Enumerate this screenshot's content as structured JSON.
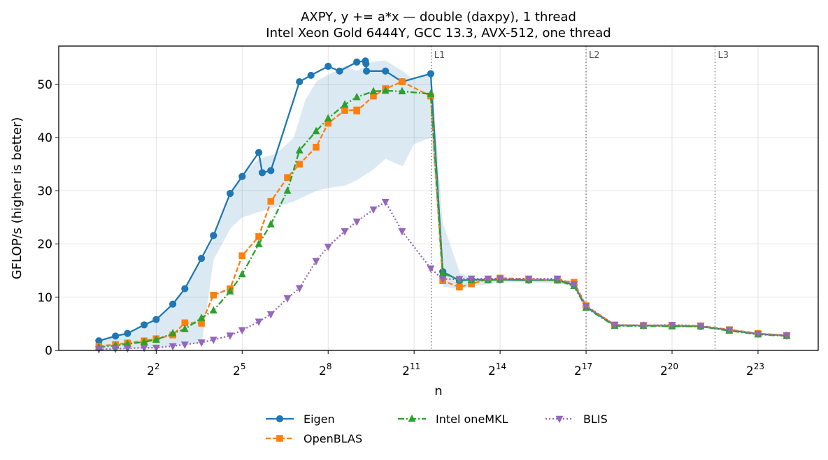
{
  "chart_data": {
    "type": "line",
    "title_lines": [
      "AXPY, y += a*x — double (daxpy), 1 thread",
      "Intel Xeon Gold 6444Y, GCC 13.3, AVX-512, one thread"
    ],
    "xlabel": "n",
    "ylabel": "GFLOP/s (higher is better)",
    "x_scale": "log2",
    "xlim_log2": [
      -1.4,
      25.1
    ],
    "ylim": [
      0,
      57.2
    ],
    "x_ticks": [
      {
        "base": "2",
        "exp": "2",
        "log2": 2
      },
      {
        "base": "2",
        "exp": "5",
        "log2": 5
      },
      {
        "base": "2",
        "exp": "8",
        "log2": 8
      },
      {
        "base": "2",
        "exp": "11",
        "log2": 11
      },
      {
        "base": "2",
        "exp": "14",
        "log2": 14
      },
      {
        "base": "2",
        "exp": "17",
        "log2": 17
      },
      {
        "base": "2",
        "exp": "20",
        "log2": 20
      },
      {
        "base": "2",
        "exp": "23",
        "log2": 23
      }
    ],
    "y_ticks": [
      0,
      10,
      20,
      30,
      40,
      50
    ],
    "grid": true,
    "cache_lines": [
      {
        "label": "L1",
        "log2": 11.6
      },
      {
        "label": "L2",
        "log2": 17.0
      },
      {
        "label": "L3",
        "log2": 21.5
      }
    ],
    "band": {
      "color": "#1f77b4",
      "upper": [
        [
          0.0,
          1.9
        ],
        [
          0.6,
          2.7
        ],
        [
          1.0,
          3.0
        ],
        [
          1.58,
          4.7
        ],
        [
          2.0,
          5.6
        ],
        [
          2.6,
          8.6
        ],
        [
          3.0,
          11.3
        ],
        [
          3.6,
          17.0
        ],
        [
          4.0,
          21.0
        ],
        [
          4.6,
          29.2
        ],
        [
          5.0,
          33.0
        ],
        [
          5.58,
          36.0
        ],
        [
          6.2,
          37.0
        ],
        [
          6.8,
          40.0
        ],
        [
          7.2,
          47.0
        ],
        [
          7.6,
          50.6
        ],
        [
          8.0,
          51.8
        ],
        [
          8.6,
          53.5
        ],
        [
          9.0,
          52.5
        ],
        [
          9.58,
          54.3
        ],
        [
          10.0,
          54.5
        ],
        [
          10.6,
          52.5
        ],
        [
          11.0,
          50.8
        ],
        [
          11.6,
          52.0
        ],
        [
          12.0,
          24.0
        ],
        [
          12.6,
          14.5
        ],
        [
          13.0,
          13.5
        ],
        [
          14.0,
          13.5
        ],
        [
          15.0,
          13.5
        ],
        [
          16.0,
          13.5
        ],
        [
          16.6,
          12.7
        ],
        [
          17.0,
          8.5
        ],
        [
          18.0,
          4.8
        ],
        [
          19.0,
          4.7
        ],
        [
          20.0,
          4.7
        ],
        [
          21.0,
          4.6
        ],
        [
          22.0,
          3.9
        ],
        [
          23.0,
          3.1
        ],
        [
          24.0,
          2.8
        ]
      ],
      "lower": [
        [
          0.0,
          0.1
        ],
        [
          0.6,
          0.2
        ],
        [
          1.0,
          0.3
        ],
        [
          1.58,
          0.4
        ],
        [
          2.0,
          0.5
        ],
        [
          2.6,
          0.8
        ],
        [
          3.0,
          1.0
        ],
        [
          3.6,
          1.5
        ],
        [
          4.0,
          17.0
        ],
        [
          4.6,
          23.0
        ],
        [
          5.0,
          25.0
        ],
        [
          5.58,
          26.0
        ],
        [
          6.2,
          27.0
        ],
        [
          6.8,
          28.0
        ],
        [
          7.2,
          29.0
        ],
        [
          7.6,
          30.0
        ],
        [
          8.0,
          30.5
        ],
        [
          8.6,
          31.0
        ],
        [
          9.0,
          32.0
        ],
        [
          9.58,
          34.0
        ],
        [
          10.0,
          36.0
        ],
        [
          10.6,
          34.6
        ],
        [
          11.0,
          38.8
        ],
        [
          11.6,
          40.0
        ],
        [
          12.0,
          12.0
        ],
        [
          12.6,
          11.5
        ],
        [
          13.0,
          12.0
        ],
        [
          14.0,
          12.8
        ],
        [
          15.0,
          12.8
        ],
        [
          16.0,
          12.6
        ],
        [
          16.6,
          12.0
        ],
        [
          17.0,
          7.9
        ],
        [
          18.0,
          4.6
        ],
        [
          19.0,
          4.6
        ],
        [
          20.0,
          4.5
        ],
        [
          21.0,
          4.4
        ],
        [
          22.0,
          3.7
        ],
        [
          23.0,
          2.9
        ],
        [
          24.0,
          2.6
        ]
      ]
    },
    "series": [
      {
        "name": "Eigen",
        "color": "#1f77b4",
        "dash": "solid",
        "marker": "circle",
        "points": [
          [
            0.0,
            1.8
          ],
          [
            0.58,
            2.7
          ],
          [
            1.0,
            3.2
          ],
          [
            1.58,
            4.8
          ],
          [
            2.0,
            5.8
          ],
          [
            2.58,
            8.7
          ],
          [
            3.0,
            11.6
          ],
          [
            3.58,
            17.3
          ],
          [
            4.0,
            21.6
          ],
          [
            4.58,
            29.5
          ],
          [
            5.0,
            32.7
          ],
          [
            5.58,
            37.2
          ],
          [
            5.7,
            33.4
          ],
          [
            6.0,
            33.8
          ],
          [
            7.0,
            50.5
          ],
          [
            7.4,
            51.7
          ],
          [
            8.0,
            53.4
          ],
          [
            8.4,
            52.5
          ],
          [
            9.0,
            54.2
          ],
          [
            9.3,
            54.4
          ],
          [
            9.32,
            53.9
          ],
          [
            9.34,
            52.5
          ],
          [
            10.0,
            52.5
          ],
          [
            10.58,
            50.5
          ],
          [
            11.58,
            52.0
          ],
          [
            12.0,
            14.8
          ],
          [
            12.58,
            13.1
          ],
          [
            13.0,
            13.3
          ],
          [
            13.58,
            13.3
          ],
          [
            14.0,
            13.3
          ],
          [
            15.0,
            13.2
          ],
          [
            16.0,
            13.2
          ],
          [
            16.58,
            12.3
          ],
          [
            17.0,
            8.2
          ],
          [
            18.0,
            4.7
          ],
          [
            19.0,
            4.7
          ],
          [
            20.0,
            4.6
          ],
          [
            21.0,
            4.5
          ],
          [
            22.0,
            3.8
          ],
          [
            23.0,
            3.1
          ],
          [
            24.0,
            2.8
          ]
        ]
      },
      {
        "name": "OpenBLAS",
        "color": "#ff7f0e",
        "dash": "dashed",
        "marker": "square",
        "points": [
          [
            0.0,
            0.8
          ],
          [
            0.58,
            1.1
          ],
          [
            1.0,
            1.4
          ],
          [
            1.58,
            1.8
          ],
          [
            2.0,
            2.2
          ],
          [
            2.58,
            2.9
          ],
          [
            3.0,
            5.2
          ],
          [
            3.58,
            5.1
          ],
          [
            4.0,
            10.4
          ],
          [
            4.58,
            11.6
          ],
          [
            5.0,
            17.8
          ],
          [
            5.58,
            21.4
          ],
          [
            6.0,
            28.0
          ],
          [
            6.58,
            32.5
          ],
          [
            7.0,
            35.0
          ],
          [
            7.58,
            38.2
          ],
          [
            8.0,
            42.7
          ],
          [
            8.58,
            45.1
          ],
          [
            9.0,
            45.2
          ],
          [
            9.0,
            45.0
          ],
          [
            9.58,
            47.8
          ],
          [
            10.0,
            49.2
          ],
          [
            10.58,
            50.5
          ],
          [
            11.58,
            47.8
          ],
          [
            12.0,
            13.1
          ],
          [
            12.58,
            11.9
          ],
          [
            13.0,
            12.5
          ],
          [
            13.58,
            13.4
          ],
          [
            14.0,
            13.6
          ],
          [
            15.0,
            13.4
          ],
          [
            16.0,
            13.2
          ],
          [
            16.58,
            12.8
          ],
          [
            17.0,
            8.4
          ],
          [
            18.0,
            4.8
          ],
          [
            19.0,
            4.7
          ],
          [
            20.0,
            4.7
          ],
          [
            21.0,
            4.6
          ],
          [
            22.0,
            3.9
          ],
          [
            23.0,
            3.2
          ],
          [
            24.0,
            2.8
          ]
        ]
      },
      {
        "name": "Intel oneMKL",
        "color": "#2ca02c",
        "dash": "dashdot",
        "marker": "triangle",
        "points": [
          [
            0.0,
            0.6
          ],
          [
            0.58,
            0.9
          ],
          [
            1.0,
            1.2
          ],
          [
            1.58,
            1.6
          ],
          [
            2.0,
            2.0
          ],
          [
            2.58,
            3.2
          ],
          [
            3.0,
            4.0
          ],
          [
            3.58,
            6.1
          ],
          [
            4.0,
            7.5
          ],
          [
            4.58,
            11.1
          ],
          [
            5.0,
            14.3
          ],
          [
            5.58,
            20.0
          ],
          [
            6.0,
            23.7
          ],
          [
            6.58,
            30.0
          ],
          [
            7.0,
            37.6
          ],
          [
            7.58,
            41.2
          ],
          [
            8.0,
            43.6
          ],
          [
            8.58,
            46.2
          ],
          [
            9.0,
            47.6
          ],
          [
            9.58,
            48.7
          ],
          [
            10.0,
            48.8
          ],
          [
            10.58,
            48.7
          ],
          [
            11.58,
            48.2
          ],
          [
            12.0,
            14.5
          ],
          [
            12.58,
            13.3
          ],
          [
            13.0,
            13.2
          ],
          [
            13.58,
            13.2
          ],
          [
            14.0,
            13.3
          ],
          [
            15.0,
            13.2
          ],
          [
            16.0,
            13.2
          ],
          [
            16.58,
            12.1
          ],
          [
            17.0,
            8.0
          ],
          [
            18.0,
            4.6
          ],
          [
            19.0,
            4.6
          ],
          [
            20.0,
            4.5
          ],
          [
            21.0,
            4.5
          ],
          [
            22.0,
            3.7
          ],
          [
            23.0,
            3.0
          ],
          [
            24.0,
            2.7
          ]
        ]
      },
      {
        "name": "BLIS",
        "color": "#9467bd",
        "dash": "dotted",
        "marker": "triangle-down",
        "points": [
          [
            0.0,
            0.2
          ],
          [
            0.58,
            0.3
          ],
          [
            1.0,
            0.4
          ],
          [
            1.58,
            0.5
          ],
          [
            2.0,
            0.5
          ],
          [
            2.58,
            0.8
          ],
          [
            3.0,
            1.1
          ],
          [
            3.58,
            1.5
          ],
          [
            4.0,
            2.0
          ],
          [
            4.58,
            2.8
          ],
          [
            5.0,
            3.8
          ],
          [
            5.58,
            5.4
          ],
          [
            6.0,
            6.8
          ],
          [
            6.58,
            9.8
          ],
          [
            7.0,
            11.7
          ],
          [
            7.58,
            16.8
          ],
          [
            8.0,
            19.5
          ],
          [
            8.58,
            22.4
          ],
          [
            9.0,
            24.2
          ],
          [
            9.58,
            26.5
          ],
          [
            10.0,
            27.9
          ],
          [
            10.58,
            22.4
          ],
          [
            11.58,
            15.4
          ],
          [
            12.0,
            13.4
          ],
          [
            12.58,
            13.4
          ],
          [
            13.0,
            13.5
          ],
          [
            13.58,
            13.5
          ],
          [
            14.0,
            13.5
          ],
          [
            15.0,
            13.5
          ],
          [
            16.0,
            13.5
          ],
          [
            16.58,
            12.4
          ],
          [
            17.0,
            8.3
          ],
          [
            18.0,
            4.8
          ],
          [
            19.0,
            4.7
          ],
          [
            20.0,
            4.8
          ],
          [
            21.0,
            4.6
          ],
          [
            22.0,
            3.9
          ],
          [
            23.0,
            3.1
          ],
          [
            24.0,
            2.8
          ]
        ]
      }
    ]
  }
}
